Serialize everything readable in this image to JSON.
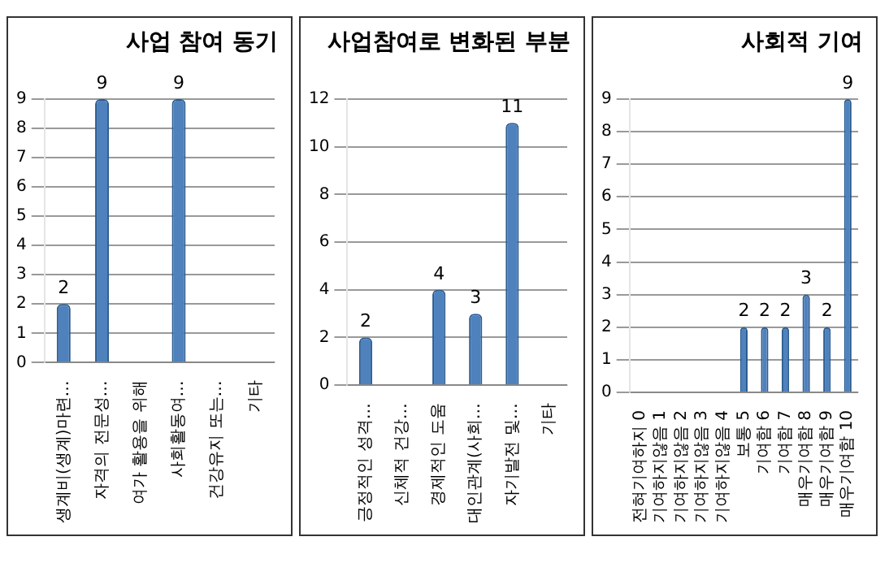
{
  "chart_data": [
    {
      "type": "bar",
      "title": "사업 참여 동기",
      "categories": [
        "생계비(생계)마련…",
        "자격의 전문성…",
        "여가 활용을 위해",
        "사회활동여…",
        "건강유지 또는…",
        "기타"
      ],
      "values": [
        2,
        9,
        0,
        9,
        0,
        0
      ],
      "value_labels": [
        "2",
        "9",
        null,
        "9",
        null,
        null
      ],
      "color": "#4f81bd",
      "ylim": [
        0,
        9
      ],
      "yticks": [
        0,
        1,
        2,
        3,
        4,
        5,
        6,
        7,
        8,
        9
      ],
      "grid": "y"
    },
    {
      "type": "bar",
      "title": "사업참여로 변화된 부분",
      "categories": [
        "긍정적인 성격…",
        "신체적 건강…",
        "경제적인 도움",
        "대인관계(사회…",
        "자기발전 및…",
        "기타"
      ],
      "values": [
        2,
        0,
        4,
        3,
        11,
        0
      ],
      "value_labels": [
        "2",
        null,
        "4",
        "3",
        "11",
        null
      ],
      "color": "#4f81bd",
      "ylim": [
        0,
        12
      ],
      "yticks": [
        0,
        2,
        4,
        6,
        8,
        10,
        12
      ],
      "grid": "y"
    },
    {
      "type": "bar",
      "title": "사회적 기여",
      "categories": [
        "전혀기여하지 0",
        "기여하지않음 1",
        "기여하지않음 2",
        "기여하지않음 3",
        "기여하지않음 4",
        "보통 5",
        "기여함 6",
        "기여함 7",
        "매우기여함 8",
        "매우기여함 9",
        "매우기여함 10"
      ],
      "values": [
        0,
        0,
        0,
        0,
        0,
        2,
        2,
        2,
        3,
        2,
        9
      ],
      "value_labels": [
        null,
        null,
        null,
        null,
        null,
        "2",
        "2",
        "2",
        "3",
        "2",
        "9"
      ],
      "color": "#4f81bd",
      "ylim": [
        0,
        9
      ],
      "yticks": [
        0,
        1,
        2,
        3,
        4,
        5,
        6,
        7,
        8,
        9
      ],
      "grid": "y"
    }
  ]
}
